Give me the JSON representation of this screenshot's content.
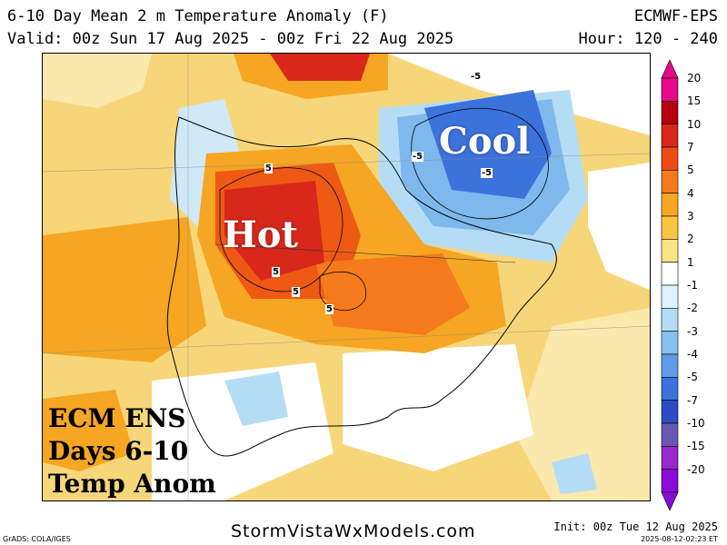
{
  "header": {
    "title": "6-10 Day Mean 2 m Temperature Anomaly (F)",
    "valid": "Valid: 00z Sun 17 Aug 2025 - 00z Fri 22 Aug 2025",
    "model": "ECMWF-EPS",
    "hours": "Hour: 120 - 240"
  },
  "map": {
    "hot_label": "Hot",
    "cool_label": "Cool",
    "info_lines": [
      "ECM ENS",
      "Days 6-10",
      "Temp Anom"
    ],
    "contour_labels": [
      "5",
      "5",
      "5",
      "5",
      "-5",
      "-5",
      "-5"
    ]
  },
  "legend": {
    "labels": [
      "20",
      "15",
      "10",
      "7",
      "5",
      "4",
      "3",
      "2",
      "1",
      "-1",
      "-2",
      "-3",
      "-4",
      "-5",
      "-7",
      "-10",
      "-15",
      "-20"
    ],
    "colors": [
      "#e8088a",
      "#b80010",
      "#d8281a",
      "#ee4a12",
      "#f57a1c",
      "#f6a622",
      "#f8c640",
      "#fbe484",
      "#ffffff",
      "#dff3fb",
      "#b4ddf5",
      "#86c0ee",
      "#5e9ce6",
      "#3c72dc",
      "#2a4cc4",
      "#6858b4",
      "#9a28cc",
      "#8a0ad8"
    ]
  },
  "footer": {
    "grads": "GrADS: COLA/IGES",
    "site": "StormVistaWxModels.com",
    "init": "Init: 00z Tue 12 Aug 2025",
    "stamp": "2025-08-12-02:23 ET"
  }
}
